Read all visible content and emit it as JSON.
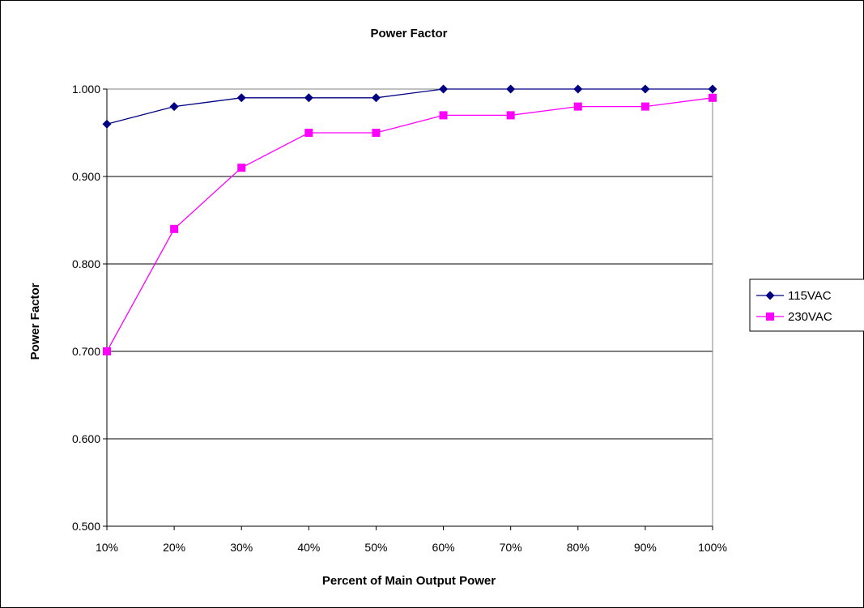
{
  "chart_data": {
    "type": "line",
    "title": "Power Factor",
    "xlabel": "Percent of Main Output Power",
    "ylabel": "Power Factor",
    "categories": [
      "10%",
      "20%",
      "30%",
      "40%",
      "50%",
      "60%",
      "70%",
      "80%",
      "90%",
      "100%"
    ],
    "ylim": [
      0.5,
      1.0
    ],
    "yticks": [
      "0.500",
      "0.600",
      "0.700",
      "0.800",
      "0.900",
      "1.000"
    ],
    "grid": true,
    "legend_position": "right",
    "series": [
      {
        "name": "115VAC",
        "color": "#000080",
        "marker": "diamond",
        "values": [
          0.96,
          0.98,
          0.99,
          0.99,
          0.99,
          1.0,
          1.0,
          1.0,
          1.0,
          1.0
        ]
      },
      {
        "name": "230VAC",
        "color": "#FF00FF",
        "marker": "square",
        "values": [
          0.7,
          0.84,
          0.91,
          0.95,
          0.95,
          0.97,
          0.97,
          0.98,
          0.98,
          0.99
        ]
      }
    ]
  }
}
